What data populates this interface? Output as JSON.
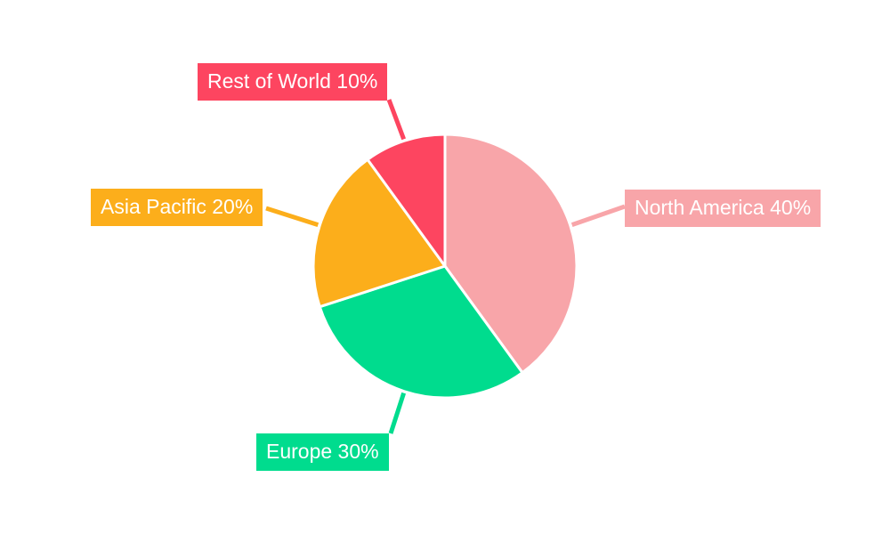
{
  "chart_data": {
    "type": "pie",
    "title": "",
    "start_angle_deg": 0,
    "direction": "clockwise",
    "background": "#FFFFFF",
    "slice_gap_color": "#FFFFFF",
    "label_style": "colored callout boxes with white text connected by leader lines",
    "segments": [
      {
        "label": "North America",
        "value": 40,
        "display": "North America 40%",
        "color": "#F8A5A9"
      },
      {
        "label": "Europe",
        "value": 30,
        "display": "Europe 30%",
        "color": "#00DC8E"
      },
      {
        "label": "Asia Pacific",
        "value": 20,
        "display": "Asia Pacific 20%",
        "color": "#FCAE1B"
      },
      {
        "label": "Rest of World",
        "value": 10,
        "display": "Rest of World 10%",
        "color": "#FD4560"
      }
    ]
  }
}
